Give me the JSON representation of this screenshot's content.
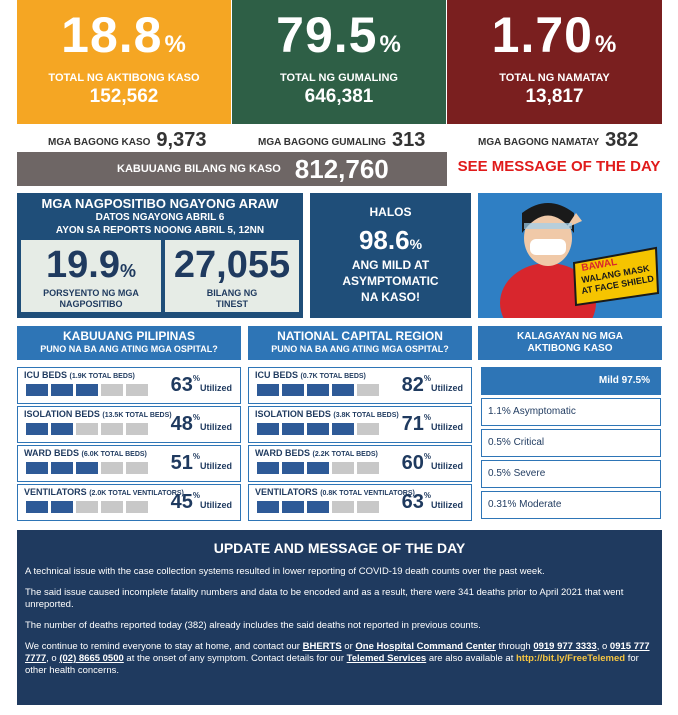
{
  "top_stats": {
    "active": {
      "value": "18.8",
      "pct": "%",
      "label": "TOTAL NG AKTIBONG KASO",
      "count": "152,562",
      "color": "#f5a623"
    },
    "recovered": {
      "value": "79.5",
      "pct": "%",
      "label": "TOTAL NG GUMALING",
      "count": "646,381",
      "color": "#2e5f46"
    },
    "deaths": {
      "value": "1.70",
      "pct": "%",
      "label": "TOTAL NG NAMATAY",
      "count": "13,817",
      "color": "#7a1f1f"
    }
  },
  "new_counts": {
    "cases": {
      "label": "MGA BAGONG KASO",
      "value": "9,373"
    },
    "recovered": {
      "label": "MGA BAGONG GUMALING",
      "value": "313"
    },
    "deaths": {
      "label": "MGA BAGONG NAMATAY",
      "value": "382"
    }
  },
  "total_cases": {
    "label": "KABUUANG BILANG NG KASO",
    "value": "812,760"
  },
  "see_message": "SEE MESSAGE OF THE DAY",
  "positivity": {
    "title": "MGA NAGPOSITIBO NGAYONG ARAW",
    "sub1": "DATOS NGAYONG ABRIL 6",
    "sub2": "AYON SA REPORTS NOONG ABRIL 5, 12NN",
    "rate": "19.9",
    "rate_unit": "%",
    "rate_label1": "PORSYENTO NG MGA",
    "rate_label2": "NAGPOSITIBO",
    "tested": "27,055",
    "tested_label1": "BILANG NG",
    "tested_label2": "TINEST"
  },
  "halos": {
    "line1": "HALOS",
    "value": "98.6",
    "unit": "%",
    "line2": "ANG MILD AT",
    "line3": "ASYMPTOMATIC",
    "line4": "NA KASO!"
  },
  "poster": {
    "line1": "BAWAL",
    "line2": "WALANG MASK",
    "line3": "AT FACE SHIELD"
  },
  "philippines": {
    "title": "KABUUANG PILIPINAS",
    "subtitle": "PUNO NA BA ANG ATING MGA OSPITAL?",
    "rows": [
      {
        "label": "ICU BEDS",
        "detail": "(1.9K TOTAL BEDS)",
        "value": "63",
        "filled": 3
      },
      {
        "label": "ISOLATION BEDS",
        "detail": "(13.5K TOTAL BEDS)",
        "value": "48",
        "filled": 2
      },
      {
        "label": "WARD BEDS",
        "detail": "(6.0K TOTAL BEDS)",
        "value": "51",
        "filled": 3
      },
      {
        "label": "VENTILATORS",
        "detail": "(2.0K TOTAL VENTILATORS)",
        "value": "45",
        "filled": 2
      }
    ]
  },
  "ncr": {
    "title": "NATIONAL CAPITAL REGION",
    "subtitle": "PUNO NA BA ANG ATING MGA OSPITAL?",
    "rows": [
      {
        "label": "ICU BEDS",
        "detail": "(0.7K TOTAL BEDS)",
        "value": "82",
        "filled": 4
      },
      {
        "label": "ISOLATION BEDS",
        "detail": "(3.8K TOTAL BEDS)",
        "value": "71",
        "filled": 4
      },
      {
        "label": "WARD BEDS",
        "detail": "(2.2K TOTAL BEDS)",
        "value": "60",
        "filled": 3
      },
      {
        "label": "VENTILATORS",
        "detail": "(0.8K TOTAL VENTILATORS)",
        "value": "63",
        "filled": 3
      }
    ]
  },
  "utilized": {
    "pct": "%",
    "label": "Utilized"
  },
  "kalagayan": {
    "title1": "KALAGAYAN NG MGA",
    "title2": "AKTIBONG KASO",
    "items": [
      "Mild 97.5%",
      "1.1% Asymptomatic",
      "0.5% Critical",
      "0.5% Severe",
      "0.31% Moderate"
    ]
  },
  "message": {
    "title": "UPDATE AND MESSAGE OF THE DAY",
    "p1": "A technical issue with the case collection systems resulted in lower reporting of COVID-19 death counts over the past week.",
    "p2": "The said issue caused incomplete fatality numbers and data to be encoded and as a result, there were 341 deaths prior to April 2021 that went unreported.",
    "p3": "The number of deaths reported today (382) already includes the said deaths not reported in previous counts.",
    "p4a": "We continue to remind everyone to stay at home, and contact our ",
    "bherts": "BHERTS",
    "p4b": " or ",
    "ohcc": "One Hospital Command Center",
    "p4c": " through ",
    "ph1": "0919 977 3333",
    "p4d": ", o ",
    "ph2": "0915 777 7777",
    "p4e": ", o ",
    "ph3": "(02) 8665 0500",
    "p4f": " at the onset of any symptom. Contact details for our ",
    "telemed": "Telemed Services",
    "p4g": " are also available at ",
    "link": "http://bit.ly/FreeTelemed",
    "p4h": " for other health concerns."
  }
}
